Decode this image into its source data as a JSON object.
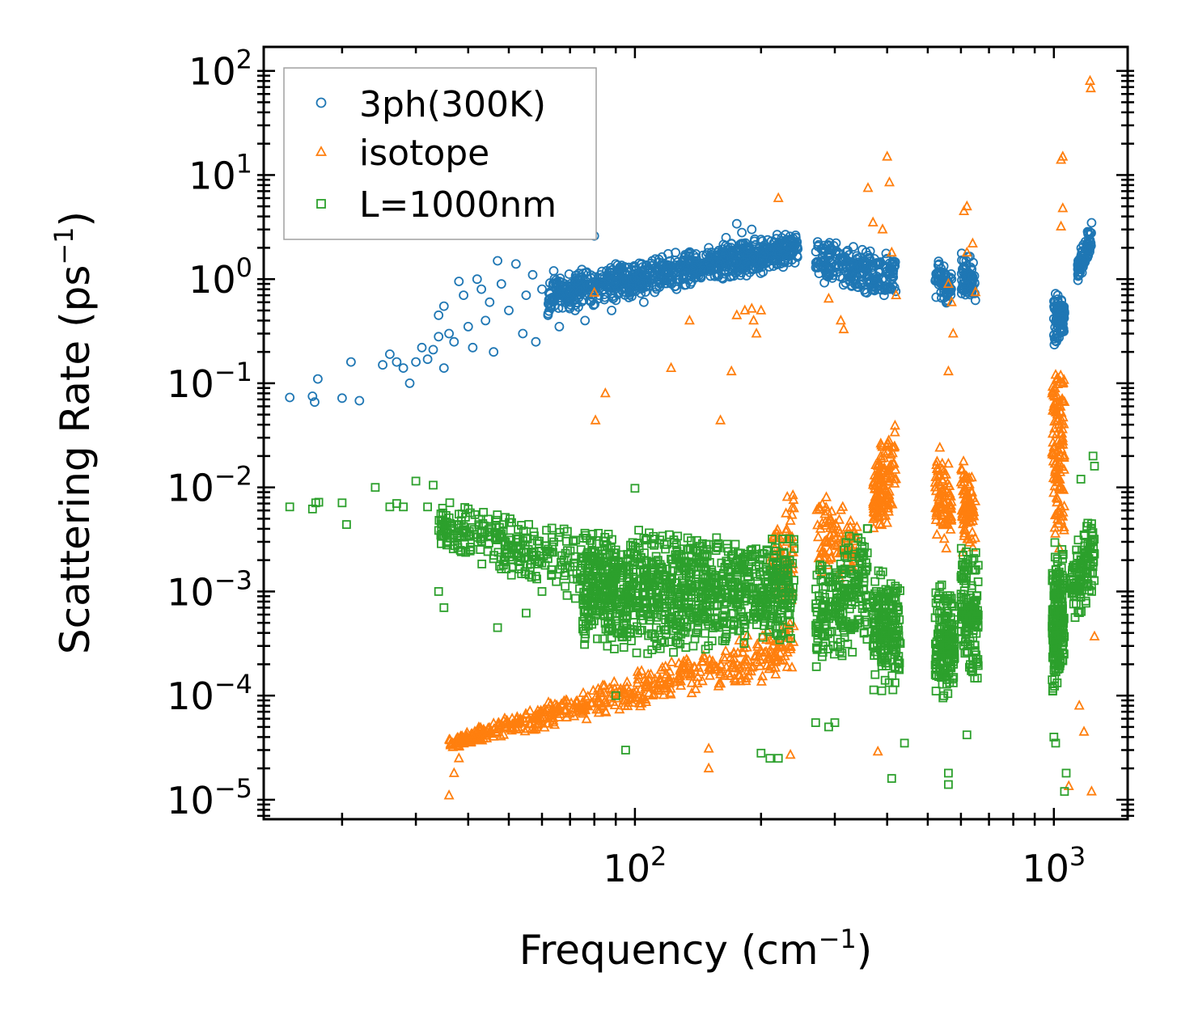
{
  "chart_data": {
    "type": "scatter",
    "xscale": "log",
    "yscale": "log",
    "xlim": [
      13,
      1500
    ],
    "ylim": [
      6.5e-06,
      170
    ],
    "xlabel": "Frequency (cm",
    "xlabel_sup": "−1",
    "xlabel_tail": ")",
    "ylabel": "Scattering Rate (ps",
    "ylabel_sup": "−1",
    "ylabel_tail": ")",
    "x_ticks": [
      {
        "value": 100,
        "base": "10",
        "exp": "2"
      },
      {
        "value": 1000,
        "base": "10",
        "exp": "3"
      }
    ],
    "y_ticks": [
      {
        "value": 1e-05,
        "base": "10",
        "exp": "−5"
      },
      {
        "value": 0.0001,
        "base": "10",
        "exp": "−4"
      },
      {
        "value": 0.001,
        "base": "10",
        "exp": "−3"
      },
      {
        "value": 0.01,
        "base": "10",
        "exp": "−2"
      },
      {
        "value": 0.1,
        "base": "10",
        "exp": "−1"
      },
      {
        "value": 1,
        "base": "10",
        "exp": "0"
      },
      {
        "value": 10,
        "base": "10",
        "exp": "1"
      },
      {
        "value": 100,
        "base": "10",
        "exp": "2"
      }
    ],
    "legend_position": "top-left",
    "series": [
      {
        "name": "3ph(300K)",
        "marker": "circle",
        "color": "#1f77b4",
        "points": [
          [
            15,
            0.073
          ],
          [
            17,
            0.075
          ],
          [
            17.2,
            0.066
          ],
          [
            17.5,
            0.11
          ],
          [
            20,
            0.072
          ],
          [
            21,
            0.16
          ],
          [
            22,
            0.068
          ],
          [
            25,
            0.15
          ],
          [
            26,
            0.19
          ],
          [
            27,
            0.16
          ],
          [
            28,
            0.14
          ],
          [
            29,
            0.1
          ],
          [
            30,
            0.16
          ],
          [
            31,
            0.22
          ],
          [
            32,
            0.17
          ],
          [
            33,
            0.21
          ],
          [
            34,
            0.28
          ],
          [
            34,
            0.45
          ],
          [
            35,
            0.55
          ],
          [
            35,
            0.14
          ],
          [
            36,
            0.3
          ],
          [
            37,
            0.25
          ],
          [
            38,
            0.95
          ],
          [
            39,
            0.7
          ],
          [
            40,
            0.35
          ],
          [
            41,
            0.22
          ],
          [
            42,
            1.0
          ],
          [
            43,
            0.8
          ],
          [
            44,
            0.4
          ],
          [
            45,
            0.6
          ],
          [
            46,
            0.2
          ],
          [
            47,
            1.5
          ],
          [
            48,
            0.9
          ],
          [
            50,
            0.5
          ],
          [
            52,
            1.4
          ],
          [
            54,
            0.3
          ],
          [
            55,
            0.7
          ],
          [
            57,
            1.1
          ],
          [
            58,
            0.25
          ],
          [
            60,
            0.8
          ],
          [
            62,
            0.45
          ],
          [
            64,
            1.2
          ],
          [
            66,
            0.35
          ],
          [
            68,
            0.9
          ],
          [
            70,
            0.6
          ],
          [
            72,
            0.5
          ],
          [
            74,
            1.0
          ],
          [
            76,
            0.4
          ],
          [
            78,
            0.8
          ],
          [
            80,
            2.6
          ],
          [
            82,
            0.7
          ],
          [
            84,
            0.9
          ],
          [
            86,
            1.1
          ],
          [
            88,
            0.5
          ],
          [
            90,
            1.4
          ],
          [
            95,
            0.8
          ],
          [
            100,
            1.2
          ],
          [
            105,
            0.6
          ],
          [
            110,
            1.5
          ],
          [
            115,
            0.9
          ],
          [
            120,
            1.3
          ],
          [
            125,
            1.8
          ],
          [
            130,
            1.0
          ],
          [
            140,
            1.6
          ],
          [
            150,
            2.0
          ],
          [
            160,
            1.4
          ],
          [
            165,
            2.5
          ],
          [
            170,
            2.2
          ],
          [
            175,
            3.4
          ],
          [
            180,
            2.8
          ],
          [
            185,
            1.8
          ],
          [
            190,
            3.0
          ],
          [
            200,
            2.4
          ],
          [
            210,
            1.9
          ],
          [
            220,
            2.2
          ],
          [
            230,
            1.6
          ],
          [
            240,
            2.0
          ]
        ],
        "bands": [
          {
            "x": [
              62,
              245
            ],
            "y_lo_start": 0.45,
            "y_lo_end": 1.3,
            "y_hi_start": 1.1,
            "y_hi_end": 3.0,
            "n": 900
          },
          {
            "x": [
              270,
              420
            ],
            "y_lo_start": 0.9,
            "y_lo_end": 0.6,
            "y_hi_start": 2.6,
            "y_hi_end": 1.8,
            "n": 260
          },
          {
            "x": [
              520,
              570
            ],
            "y_lo_start": 0.6,
            "y_lo_end": 0.55,
            "y_hi_start": 1.7,
            "y_hi_end": 1.2,
            "n": 70
          },
          {
            "x": [
              600,
              650
            ],
            "y_lo_start": 0.6,
            "y_lo_end": 0.6,
            "y_hi_start": 2.4,
            "y_hi_end": 1.4,
            "n": 70
          },
          {
            "x": [
              1000,
              1060
            ],
            "y_lo_start": 0.2,
            "y_lo_end": 0.3,
            "y_hi_start": 1.0,
            "y_hi_end": 0.6,
            "n": 90
          },
          {
            "x": [
              1140,
              1230
            ],
            "y_lo_start": 0.9,
            "y_lo_end": 1.6,
            "y_hi_start": 1.7,
            "y_hi_end": 3.9,
            "n": 90
          }
        ]
      },
      {
        "name": "isotope",
        "marker": "triangle",
        "color": "#ff7f0e",
        "points": [
          [
            80,
            0.74
          ],
          [
            80.5,
            0.044
          ],
          [
            85,
            0.08
          ],
          [
            122,
            0.14
          ],
          [
            135,
            0.4
          ],
          [
            160,
            0.044
          ],
          [
            170,
            0.13
          ],
          [
            175,
            0.45
          ],
          [
            183,
            0.5
          ],
          [
            190,
            0.52
          ],
          [
            192,
            0.4
          ],
          [
            195,
            0.3
          ],
          [
            200,
            0.5
          ],
          [
            220,
            6.0
          ],
          [
            290,
            0.65
          ],
          [
            310,
            0.4
          ],
          [
            315,
            0.33
          ],
          [
            360,
            7.5
          ],
          [
            370,
            3.5
          ],
          [
            390,
            3.0
          ],
          [
            400,
            15
          ],
          [
            405,
            8.5
          ],
          [
            420,
            0.7
          ],
          [
            410,
            1.8
          ],
          [
            560,
            0.9
          ],
          [
            570,
            0.6
          ],
          [
            575,
            0.3
          ],
          [
            560,
            0.13
          ],
          [
            610,
            4.5
          ],
          [
            620,
            5.0
          ],
          [
            640,
            2.2
          ],
          [
            620,
            1.8
          ],
          [
            650,
            0.75
          ],
          [
            1040,
            14
          ],
          [
            1050,
            15
          ],
          [
            1050,
            4.8
          ],
          [
            1040,
            3.2
          ],
          [
            1220,
            80
          ],
          [
            1225,
            68
          ],
          [
            1085,
            1.35e-05
          ],
          [
            1230,
            1.2e-05
          ],
          [
            1250,
            0.00037
          ],
          [
            1150,
            8e-05
          ],
          [
            1180,
            4.5e-05
          ],
          [
            150,
            3.1e-05
          ],
          [
            150,
            2e-05
          ],
          [
            235,
            2.7e-05
          ],
          [
            380,
            2.9e-05
          ],
          [
            36,
            1.1e-05
          ],
          [
            37,
            1.8e-05
          ],
          [
            38,
            2.5e-05
          ]
        ],
        "bands": [
          {
            "x": [
              36,
              240
            ],
            "y_lo_start": 3e-05,
            "y_lo_end": 0.00015,
            "y_hi_start": 4e-05,
            "y_hi_end": 0.0006,
            "n": 520
          },
          {
            "x": [
              210,
              240
            ],
            "y_lo_start": 0.0006,
            "y_lo_end": 0.0007,
            "y_hi_start": 0.005,
            "y_hi_end": 0.013,
            "n": 70
          },
          {
            "x": [
              270,
              340
            ],
            "y_lo_start": 0.0012,
            "y_lo_end": 0.0014,
            "y_hi_start": 0.012,
            "y_hi_end": 0.005,
            "n": 100
          },
          {
            "x": [
              370,
              420
            ],
            "y_lo_start": 0.003,
            "y_lo_end": 0.005,
            "y_hi_start": 0.025,
            "y_hi_end": 0.05,
            "n": 130
          },
          {
            "x": [
              520,
              570
            ],
            "y_lo_start": 0.0025,
            "y_lo_end": 0.0025,
            "y_hi_start": 0.035,
            "y_hi_end": 0.015,
            "n": 90
          },
          {
            "x": [
              600,
              650
            ],
            "y_lo_start": 0.002,
            "y_lo_end": 0.002,
            "y_hi_start": 0.025,
            "y_hi_end": 0.012,
            "n": 90
          },
          {
            "x": [
              990,
              1060
            ],
            "y_lo_start": 0.003,
            "y_lo_end": 0.002,
            "y_hi_start": 0.2,
            "y_hi_end": 0.15,
            "n": 130
          }
        ]
      },
      {
        "name": "L=1000nm",
        "marker": "square",
        "color": "#2ca02c",
        "points": [
          [
            15,
            0.0065
          ],
          [
            17,
            0.0062
          ],
          [
            17.3,
            0.0071
          ],
          [
            17.6,
            0.0072
          ],
          [
            20,
            0.0071
          ],
          [
            20.5,
            0.0044
          ],
          [
            24,
            0.01
          ],
          [
            26,
            0.0065
          ],
          [
            27,
            0.007
          ],
          [
            28,
            0.0065
          ],
          [
            30,
            0.0115
          ],
          [
            32,
            0.0065
          ],
          [
            33,
            0.0105
          ],
          [
            34,
            0.001
          ],
          [
            35,
            0.0007
          ],
          [
            47,
            0.00045
          ],
          [
            55,
            0.00062
          ],
          [
            60,
            0.001
          ],
          [
            90,
            0.0001
          ],
          [
            95,
            3e-05
          ],
          [
            100,
            0.0098
          ],
          [
            200,
            2.8e-05
          ],
          [
            210,
            2.5e-05
          ],
          [
            220,
            2.5e-05
          ],
          [
            270,
            5.5e-05
          ],
          [
            290,
            5e-05
          ],
          [
            300,
            5.5e-05
          ],
          [
            410,
            1.6e-05
          ],
          [
            440,
            3.5e-05
          ],
          [
            560,
            1.4e-05
          ],
          [
            560,
            1.8e-05
          ],
          [
            620,
            4.2e-05
          ],
          [
            1000,
            4e-05
          ],
          [
            1010,
            3.5e-05
          ],
          [
            1060,
            1.2e-05
          ],
          [
            1070,
            1.8e-05
          ],
          [
            1250,
            0.016
          ],
          [
            1240,
            0.02
          ],
          [
            1160,
            0.012
          ],
          [
            1180,
            0.0035
          ]
        ],
        "bands": [
          {
            "x": [
              34,
              90
            ],
            "y_lo_start": 0.0025,
            "y_lo_end": 0.0005,
            "y_hi_start": 0.0075,
            "y_hi_end": 0.004,
            "n": 330
          },
          {
            "x": [
              75,
              240
            ],
            "y_lo_start": 0.0002,
            "y_lo_end": 0.0003,
            "y_hi_start": 0.0045,
            "y_hi_end": 0.004,
            "n": 1050
          },
          {
            "x": [
              270,
              360
            ],
            "y_lo_start": 0.00015,
            "y_lo_end": 0.0003,
            "y_hi_start": 0.002,
            "y_hi_end": 0.005,
            "n": 230
          },
          {
            "x": [
              370,
              430
            ],
            "y_lo_start": 0.0001,
            "y_lo_end": 0.0001,
            "y_hi_start": 0.002,
            "y_hi_end": 0.0015,
            "n": 180
          },
          {
            "x": [
              520,
              580
            ],
            "y_lo_start": 8e-05,
            "y_lo_end": 0.0001,
            "y_hi_start": 0.0015,
            "y_hi_end": 0.0012,
            "n": 160
          },
          {
            "x": [
              600,
              660
            ],
            "y_lo_start": 0.0002,
            "y_lo_end": 0.0001,
            "y_hi_start": 0.003,
            "y_hi_end": 0.0025,
            "n": 150
          },
          {
            "x": [
              990,
              1060
            ],
            "y_lo_start": 8e-05,
            "y_lo_end": 0.0001,
            "y_hi_start": 0.003,
            "y_hi_end": 0.004,
            "n": 200
          },
          {
            "x": [
              1100,
              1250
            ],
            "y_lo_start": 0.0004,
            "y_lo_end": 0.0008,
            "y_hi_start": 0.0025,
            "y_hi_end": 0.008,
            "n": 120
          }
        ]
      }
    ]
  }
}
